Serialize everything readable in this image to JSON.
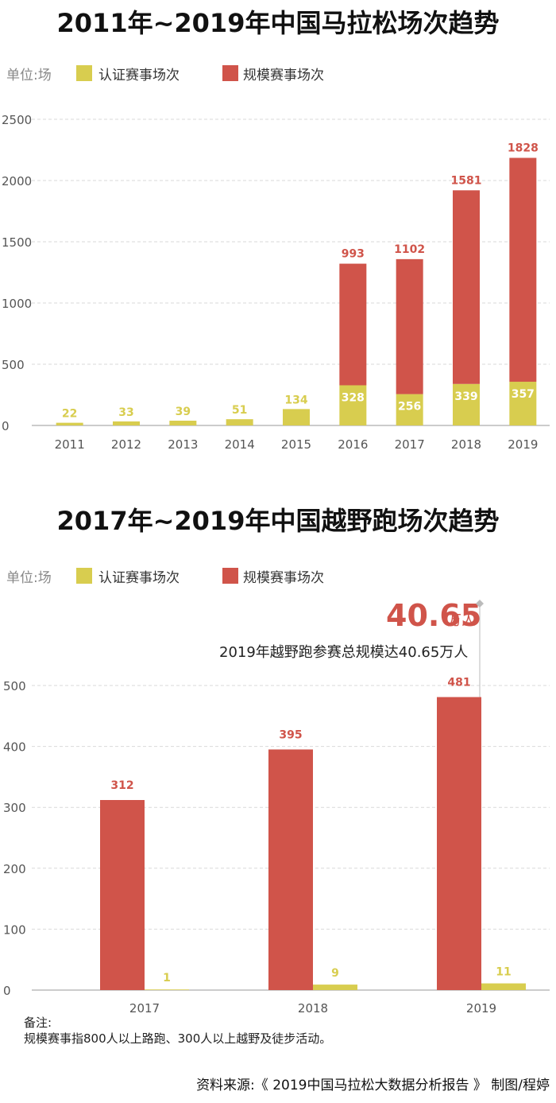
{
  "colors": {
    "certified": "#d8cd4f",
    "scale": "#d0544a",
    "grid": "#d9d9d9",
    "axis_text": "#555555"
  },
  "chart_data": [
    {
      "type": "bar",
      "stacked": true,
      "title": "2011年~2019年中国马拉松场次趋势",
      "unit_label": "单位:场",
      "categories": [
        "2011",
        "2012",
        "2013",
        "2014",
        "2015",
        "2016",
        "2017",
        "2018",
        "2019"
      ],
      "series": [
        {
          "name": "认证赛事场次",
          "values": [
            22,
            33,
            39,
            51,
            134,
            328,
            256,
            339,
            357
          ]
        },
        {
          "name": "规模赛事场次",
          "values": [
            null,
            null,
            null,
            null,
            null,
            993,
            1102,
            1581,
            1828
          ]
        }
      ],
      "yticks": [
        0,
        500,
        1000,
        1500,
        2000,
        2500
      ],
      "ylim": [
        0,
        2500
      ],
      "grid": true,
      "legend_position": "top"
    },
    {
      "type": "bar",
      "grouped": true,
      "title": "2017年~2019年中国越野跑场次趋势",
      "unit_label": "单位:场",
      "categories": [
        "2017",
        "2018",
        "2019"
      ],
      "series": [
        {
          "name": "认证赛事场次",
          "values": [
            1,
            9,
            11
          ]
        },
        {
          "name": "规模赛事场次",
          "values": [
            312,
            395,
            481
          ]
        }
      ],
      "yticks": [
        0,
        100,
        200,
        300,
        400,
        500
      ],
      "ylim": [
        0,
        500
      ],
      "grid": true,
      "legend_position": "top",
      "annotation": {
        "value": "40.65",
        "unit": "万人",
        "text": "2019年越野跑参赛总规模达40.65万人"
      }
    }
  ],
  "note": {
    "heading": "备注:",
    "text": "规模赛事指800人以上路跑、300人以上越野及徒步活动。"
  },
  "source": "资料来源:《 2019中国马拉松大数据分析报告 》   制图/程婷"
}
